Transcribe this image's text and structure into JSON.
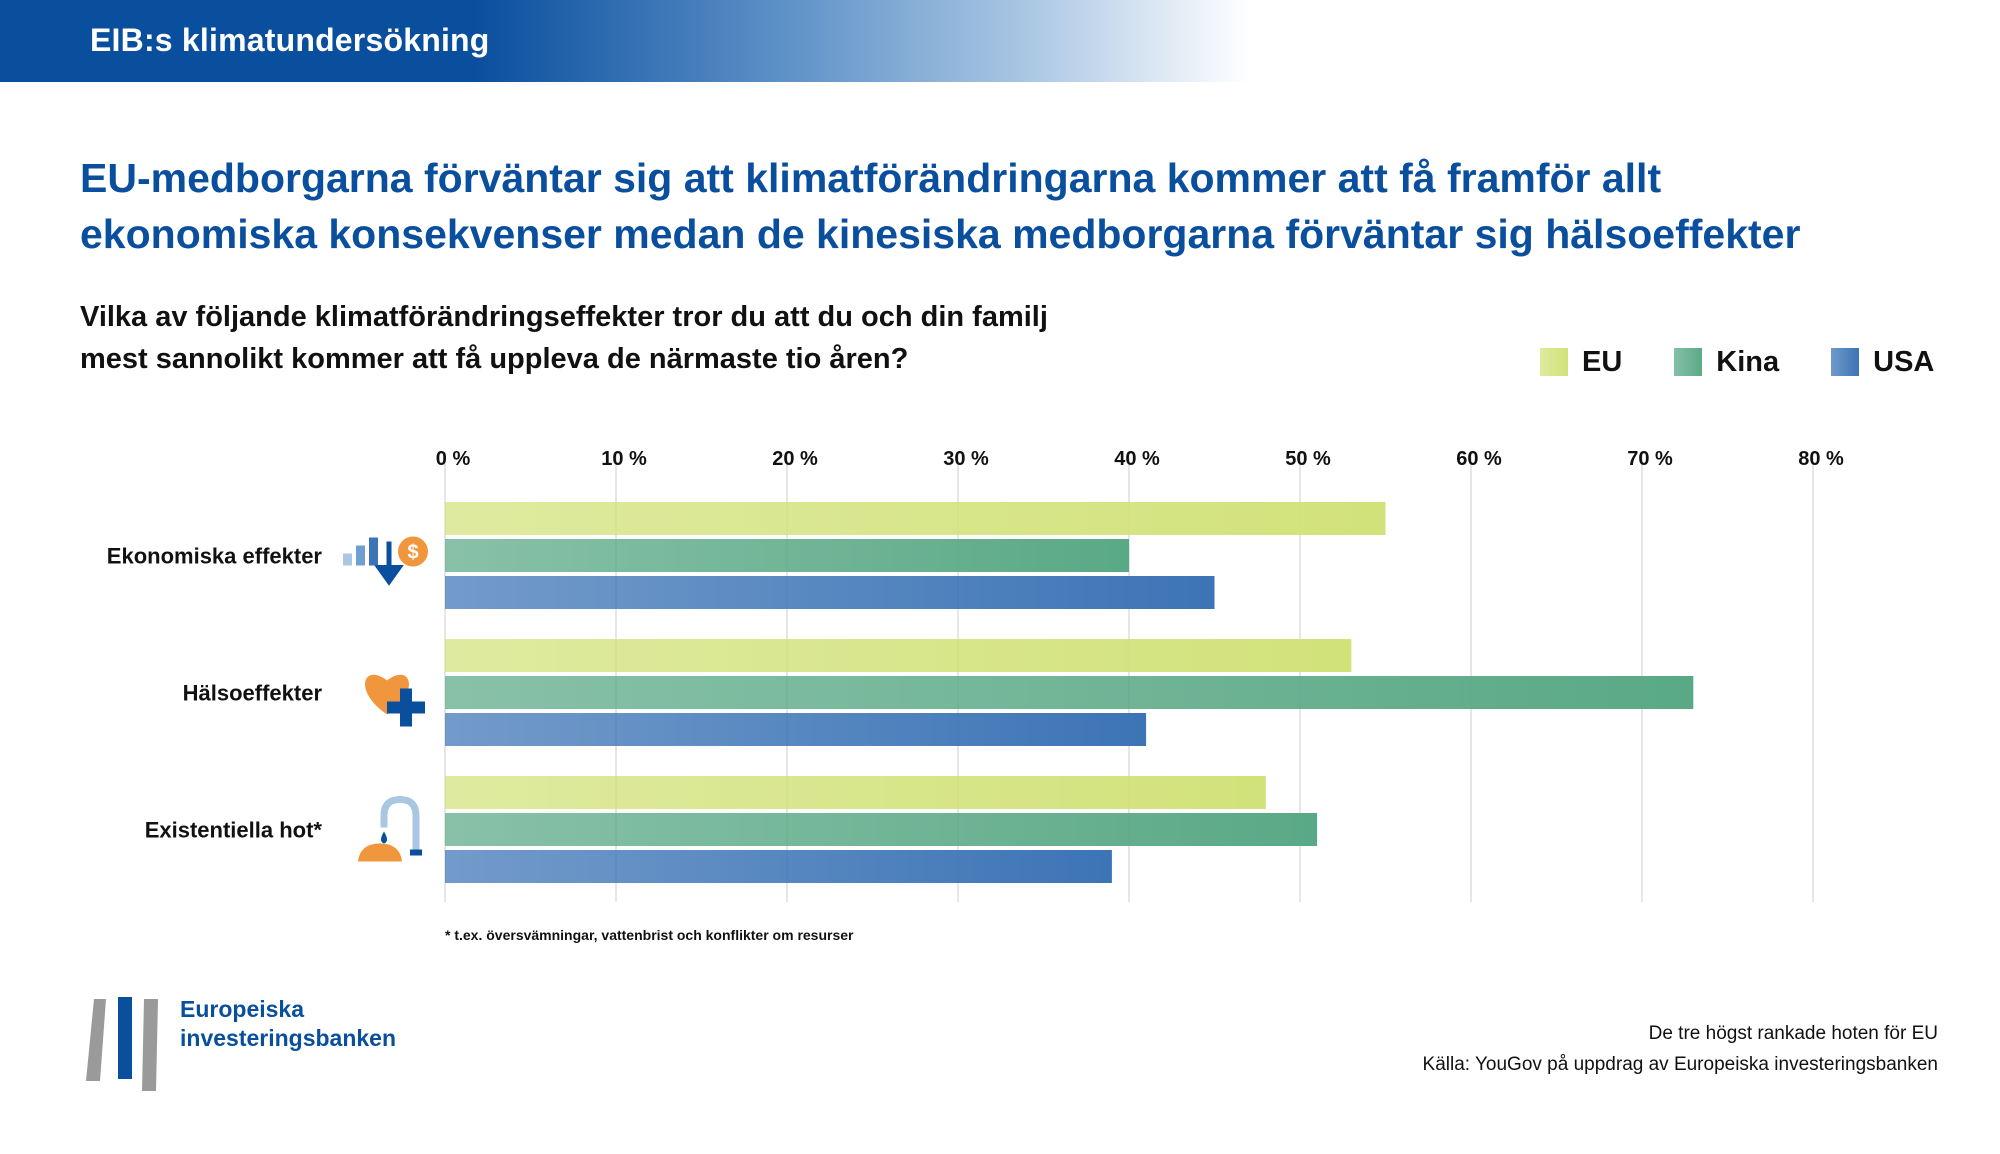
{
  "header": {
    "title": "EIB:s klimatundersökning"
  },
  "headline": "EU-medborgarna förväntar sig att klimatförändringarna kommer att få framför allt ekonomiska konsekvenser medan de kinesiska medborgarna förväntar sig hälsoeffekter",
  "question": {
    "line1": "Vilka av följande klimatförändringseffekter tror du att du och din familj",
    "line2": "mest sannolikt kommer att få uppleva de närmaste tio åren?"
  },
  "chart_data": {
    "type": "bar",
    "orientation": "horizontal",
    "categories": [
      "Ekonomiska effekter",
      "Hälsoeffekter",
      "Existentiella hot*"
    ],
    "category_icons": [
      "economy-icon",
      "health-icon",
      "existential-threat-icon"
    ],
    "series": [
      {
        "name": "EU",
        "values": [
          55,
          53,
          48
        ],
        "color": "#d2e27a"
      },
      {
        "name": "Kina",
        "values": [
          40,
          73,
          51
        ],
        "color": "#5aa986"
      },
      {
        "name": "USA",
        "values": [
          45,
          41,
          39
        ],
        "color": "#3c74b6"
      }
    ],
    "x_ticks": [
      0,
      10,
      20,
      30,
      40,
      50,
      60,
      70,
      80
    ],
    "x_tick_labels": [
      "0 %",
      "10 %",
      "20 %",
      "30 %",
      "40 %",
      "50 %",
      "60 %",
      "70 %",
      "80 %"
    ],
    "xlim": [
      0,
      80
    ],
    "xlabel": "",
    "ylabel": "",
    "grid": true,
    "legend_position": "top-right"
  },
  "footnote": "* t.ex. översvämningar, vattenbrist och konflikter om resurser",
  "logo": {
    "line1": "Europeiska",
    "line2": "investeringsbanken"
  },
  "source": {
    "line1": "De tre högst rankade hoten för EU",
    "line2": "Källa: YouGov på uppdrag av Europeiska investeringsbanken"
  },
  "colors": {
    "brand_blue": "#0a4f9e",
    "icon_orange": "#f0963c",
    "grid": "#dddddd"
  }
}
